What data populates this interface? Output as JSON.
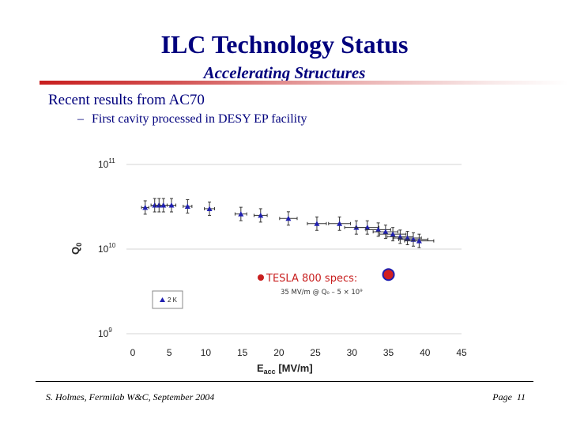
{
  "slide": {
    "title": "ILC Technology Status",
    "subtitle": "Accelerating Structures",
    "bullet": "Recent results from AC70",
    "subbullet_dash": "–",
    "subbullet": "First cavity processed in DESY EP facility",
    "footer_left": "S. Holmes, Fermilab W&C, September 2004",
    "footer_page_label": "Page",
    "footer_page_number": "11",
    "rule_color": "#c81e1e",
    "text_color": "#00007d"
  },
  "chart_data": {
    "type": "scatter",
    "xlabel": "E",
    "xlabel_sub": "acc",
    "xlabel_unit": " [MV/m]",
    "ylabel": "Q",
    "ylabel_sub": "0",
    "xlim": [
      0,
      45
    ],
    "x_ticks": [
      "0",
      "5",
      "10",
      "15",
      "20",
      "25",
      "30",
      "35",
      "40",
      "45"
    ],
    "y_scale": "log",
    "ylim": [
      1000000000.0,
      100000000000.0
    ],
    "y_ticks": [
      {
        "base": "10",
        "exp": "11",
        "value": 100000000000.0
      },
      {
        "base": "10",
        "exp": "10",
        "value": 10000000000.0
      },
      {
        "base": "10",
        "exp": "9",
        "value": 1000000000.0
      }
    ],
    "grid": true,
    "series": [
      {
        "name": "2 K",
        "marker": "triangle",
        "color": "#2020b0",
        "points": [
          {
            "x": 1.7,
            "y": 31000000000.0,
            "xerr": 0.5,
            "yerr": 0.2
          },
          {
            "x": 3.0,
            "y": 33000000000.0,
            "xerr": 0.5,
            "yerr": 0.2
          },
          {
            "x": 3.6,
            "y": 33000000000.0,
            "xerr": 0.5,
            "yerr": 0.2
          },
          {
            "x": 4.2,
            "y": 33000000000.0,
            "xerr": 0.5,
            "yerr": 0.2
          },
          {
            "x": 5.3,
            "y": 33000000000.0,
            "xerr": 0.6,
            "yerr": 0.2
          },
          {
            "x": 7.5,
            "y": 32000000000.0,
            "xerr": 0.6,
            "yerr": 0.2
          },
          {
            "x": 10.5,
            "y": 30000000000.0,
            "xerr": 0.7,
            "yerr": 0.2
          },
          {
            "x": 14.8,
            "y": 26000000000.0,
            "xerr": 0.8,
            "yerr": 0.2
          },
          {
            "x": 17.5,
            "y": 25000000000.0,
            "xerr": 0.9,
            "yerr": 0.2
          },
          {
            "x": 21.3,
            "y": 23000000000.0,
            "xerr": 1.2,
            "yerr": 0.2
          },
          {
            "x": 25.2,
            "y": 20000000000.0,
            "xerr": 1.3,
            "yerr": 0.2
          },
          {
            "x": 28.3,
            "y": 20000000000.0,
            "xerr": 1.5,
            "yerr": 0.2
          },
          {
            "x": 30.6,
            "y": 18000000000.0,
            "xerr": 1.6,
            "yerr": 0.2
          },
          {
            "x": 32.1,
            "y": 18000000000.0,
            "xerr": 1.6,
            "yerr": 0.2
          },
          {
            "x": 33.6,
            "y": 17000000000.0,
            "xerr": 1.7,
            "yerr": 0.2
          },
          {
            "x": 34.6,
            "y": 16000000000.0,
            "xerr": 1.7,
            "yerr": 0.2
          },
          {
            "x": 35.6,
            "y": 15000000000.0,
            "xerr": 1.8,
            "yerr": 0.2
          },
          {
            "x": 36.6,
            "y": 14000000000.0,
            "xerr": 1.8,
            "yerr": 0.2
          },
          {
            "x": 37.6,
            "y": 13500000000.0,
            "xerr": 1.9,
            "yerr": 0.2
          },
          {
            "x": 38.4,
            "y": 13000000000.0,
            "xerr": 2.0,
            "yerr": 0.2
          },
          {
            "x": 39.2,
            "y": 12500000000.0,
            "xerr": 2.0,
            "yerr": 0.2
          }
        ]
      }
    ],
    "spec_marker": {
      "x": 35,
      "y": 5000000000.0,
      "color": "#d22020",
      "outline": "#2020b0"
    },
    "annotation": {
      "label": "TESLA 800 specs:",
      "detail": "35 MV/m @ Q₀ – 5 × 10⁹",
      "bullet_color": "#c81e1e"
    },
    "legend": {
      "entry": "2 K",
      "placement": "lower-left"
    }
  }
}
